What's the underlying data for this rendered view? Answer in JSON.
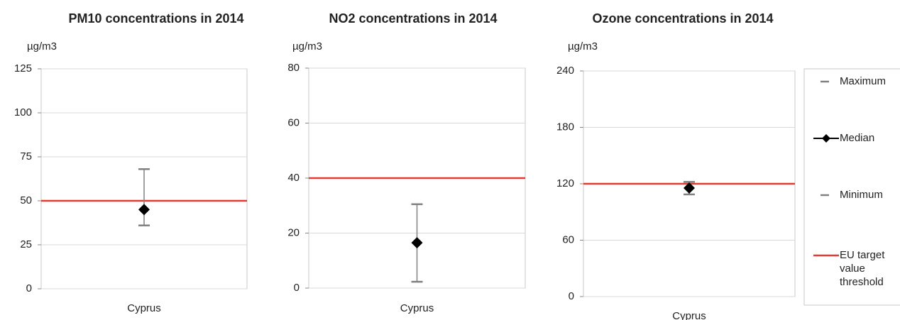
{
  "chart_data": [
    {
      "type": "range",
      "title": "PM10 concentrations in 2014",
      "y_label": "µg/m3",
      "categories": [
        "Cyprus"
      ],
      "ylim": [
        0,
        125
      ],
      "yticks": [
        0,
        25,
        50,
        75,
        100,
        125
      ],
      "grid": true,
      "series": [
        {
          "name": "Maximum",
          "color": "#808080",
          "values": [
            68
          ]
        },
        {
          "name": "Median",
          "color": "#000000",
          "values": [
            45
          ]
        },
        {
          "name": "Minimum",
          "color": "#808080",
          "values": [
            36
          ]
        },
        {
          "name": "EU target value threshold",
          "color": "#e03c31",
          "values": [
            50
          ]
        }
      ]
    },
    {
      "type": "range",
      "title": "NO2 concentrations in 2014",
      "y_label": "µg/m3",
      "categories": [
        "Cyprus"
      ],
      "ylim": [
        0,
        80
      ],
      "yticks": [
        0,
        20,
        40,
        60,
        80
      ],
      "grid": true,
      "series": [
        {
          "name": "Maximum",
          "color": "#808080",
          "values": [
            30.5
          ]
        },
        {
          "name": "Median",
          "color": "#000000",
          "values": [
            16.5
          ]
        },
        {
          "name": "Minimum",
          "color": "#808080",
          "values": [
            2.3
          ]
        },
        {
          "name": "EU target value threshold",
          "color": "#e03c31",
          "values": [
            40
          ]
        }
      ]
    },
    {
      "type": "range",
      "title": "Ozone concentrations in 2014",
      "y_label": "µg/m3",
      "categories": [
        "Cyprus"
      ],
      "ylim": [
        0,
        240
      ],
      "yticks": [
        0,
        60,
        120,
        180,
        240
      ],
      "grid": true,
      "legend": "right",
      "series": [
        {
          "name": "Maximum",
          "color": "#808080",
          "values": [
            122
          ]
        },
        {
          "name": "Median",
          "color": "#000000",
          "values": [
            115.5
          ]
        },
        {
          "name": "Minimum",
          "color": "#808080",
          "values": [
            108.7
          ]
        },
        {
          "name": "EU target value threshold",
          "color": "#e03c31",
          "values": [
            120
          ]
        }
      ]
    }
  ]
}
